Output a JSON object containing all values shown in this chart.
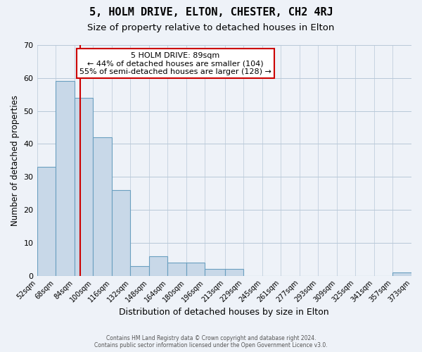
{
  "title": "5, HOLM DRIVE, ELTON, CHESTER, CH2 4RJ",
  "subtitle": "Size of property relative to detached houses in Elton",
  "xlabel": "Distribution of detached houses by size in Elton",
  "ylabel": "Number of detached properties",
  "bar_color": "#c8d8e8",
  "bar_edge_color": "#6a9fc0",
  "background_color": "#eef2f8",
  "grid_color": "#b8c8d8",
  "vline_x": 89,
  "vline_color": "#cc0000",
  "bin_edges": [
    52,
    68,
    84,
    100,
    116,
    132,
    148,
    164,
    180,
    196,
    213,
    229,
    245,
    261,
    277,
    293,
    309,
    325,
    341,
    357,
    373
  ],
  "bar_heights": [
    33,
    59,
    54,
    42,
    26,
    3,
    6,
    4,
    4,
    2,
    2,
    0,
    0,
    0,
    0,
    0,
    0,
    0,
    0,
    1
  ],
  "xlim": [
    52,
    373
  ],
  "ylim": [
    0,
    70
  ],
  "yticks": [
    0,
    10,
    20,
    30,
    40,
    50,
    60,
    70
  ],
  "xtick_labels": [
    "52sqm",
    "68sqm",
    "84sqm",
    "100sqm",
    "116sqm",
    "132sqm",
    "148sqm",
    "164sqm",
    "180sqm",
    "196sqm",
    "213sqm",
    "229sqm",
    "245sqm",
    "261sqm",
    "277sqm",
    "293sqm",
    "309sqm",
    "325sqm",
    "341sqm",
    "357sqm",
    "373sqm"
  ],
  "annotation_title": "5 HOLM DRIVE: 89sqm",
  "annotation_line1": "← 44% of detached houses are smaller (104)",
  "annotation_line2": "55% of semi-detached houses are larger (128) →",
  "footer1": "Contains HM Land Registry data © Crown copyright and database right 2024.",
  "footer2": "Contains public sector information licensed under the Open Government Licence v3.0.",
  "title_fontsize": 11,
  "subtitle_fontsize": 9.5,
  "annotation_box_edge_color": "#cc0000"
}
